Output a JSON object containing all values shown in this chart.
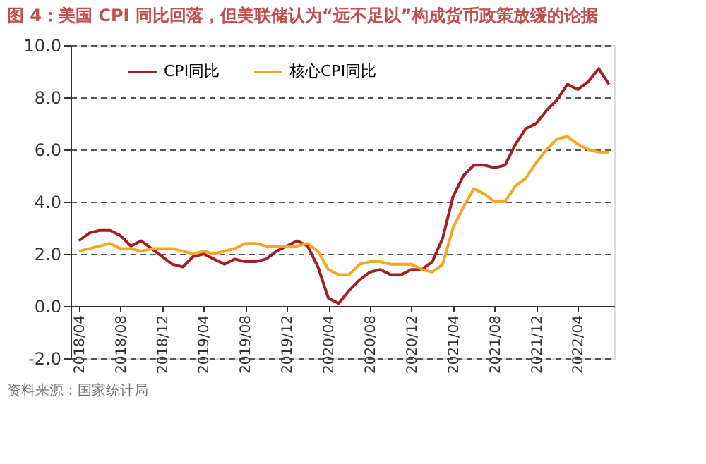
{
  "chart_data": {
    "type": "line",
    "title": "图 4：美国 CPI 同比回落，但美联储认为“远不足以”构成货币政策放缓的论据",
    "categories": [
      "2018/04",
      null,
      null,
      null,
      "2018/08",
      null,
      null,
      null,
      "2018/12",
      null,
      null,
      null,
      "2019/04",
      null,
      null,
      null,
      "2019/08",
      null,
      null,
      null,
      "2019/12",
      null,
      null,
      null,
      "2020/04",
      null,
      null,
      null,
      "2020/08",
      null,
      null,
      null,
      "2020/12",
      null,
      null,
      null,
      "2021/04",
      null,
      null,
      null,
      "2021/08",
      null,
      null,
      null,
      "2021/12",
      null,
      null,
      null,
      "2022/04",
      null,
      null,
      null
    ],
    "series": [
      {
        "name": "CPI同比",
        "color": "#a31f24",
        "values": [
          2.5,
          2.8,
          2.9,
          2.9,
          2.7,
          2.3,
          2.5,
          2.2,
          1.9,
          1.6,
          1.5,
          1.9,
          2.0,
          1.8,
          1.6,
          1.8,
          1.7,
          1.7,
          1.8,
          2.1,
          2.3,
          2.5,
          2.3,
          1.5,
          0.3,
          0.1,
          0.6,
          1.0,
          1.3,
          1.4,
          1.2,
          1.2,
          1.4,
          1.4,
          1.7,
          2.6,
          4.2,
          5.0,
          5.4,
          5.4,
          5.3,
          5.4,
          6.2,
          6.8,
          7.0,
          7.5,
          7.9,
          8.5,
          8.3,
          8.6,
          9.1,
          8.5
        ]
      },
      {
        "name": "核心CPI同比",
        "color": "#f5a623",
        "values": [
          2.1,
          2.2,
          2.3,
          2.4,
          2.2,
          2.2,
          2.1,
          2.2,
          2.2,
          2.2,
          2.1,
          2.0,
          2.1,
          2.0,
          2.1,
          2.2,
          2.4,
          2.4,
          2.3,
          2.3,
          2.3,
          2.3,
          2.4,
          2.1,
          1.4,
          1.2,
          1.2,
          1.6,
          1.7,
          1.7,
          1.6,
          1.6,
          1.6,
          1.4,
          1.3,
          1.6,
          3.0,
          3.8,
          4.5,
          4.3,
          4.0,
          4.0,
          4.6,
          4.9,
          5.5,
          6.0,
          6.4,
          6.5,
          6.2,
          6.0,
          5.9,
          5.9
        ]
      }
    ],
    "ylim": [
      -2,
      10
    ],
    "yticks": [
      {
        "value": -2,
        "label": "-2.0"
      },
      {
        "value": 0,
        "label": "0.0"
      },
      {
        "value": 2,
        "label": "2.0"
      },
      {
        "value": 4,
        "label": "4.0"
      },
      {
        "value": 6,
        "label": "6.0"
      },
      {
        "value": 8,
        "label": "8.0"
      },
      {
        "value": 10,
        "label": "10.0"
      }
    ],
    "grid": "y",
    "legend": "top left",
    "marker": "none",
    "line_style": "solid",
    "annotations": [
      "资料来源：国家统计局"
    ]
  }
}
